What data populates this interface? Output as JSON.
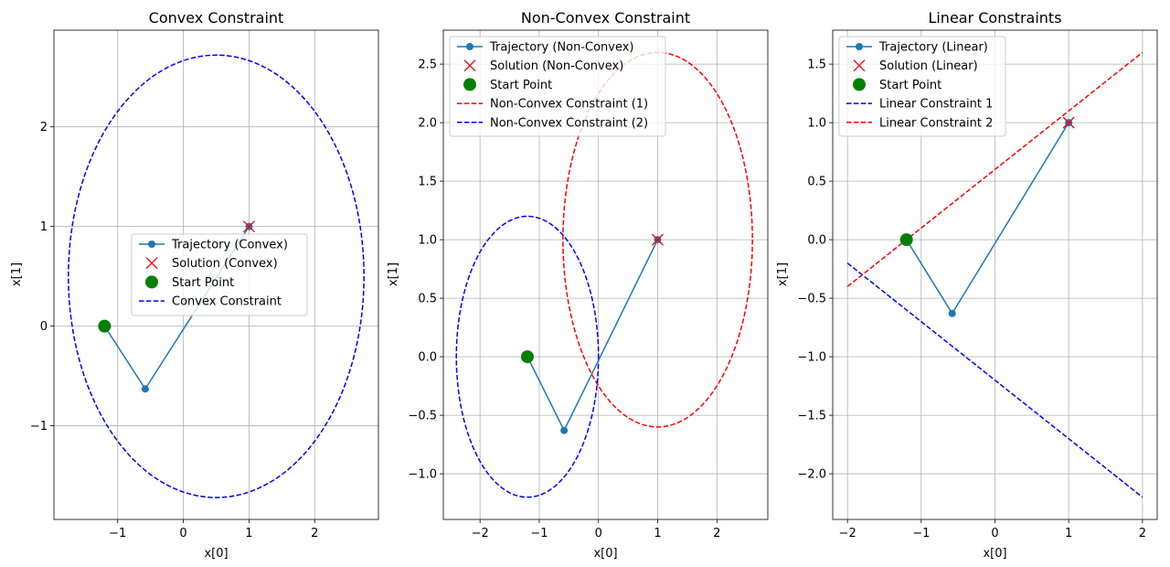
{
  "chart_data": [
    {
      "type": "line",
      "title": "Convex Constraint",
      "xlabel": "x[0]",
      "ylabel": "x[1]",
      "xlim": [
        -1.97,
        2.97
      ],
      "ylim": [
        -1.94,
        2.97
      ],
      "xticks": [
        -1,
        0,
        1,
        2
      ],
      "xtick_labels": [
        "−1",
        "0",
        "1",
        "2"
      ],
      "yticks": [
        -1,
        0,
        1,
        2
      ],
      "ytick_labels": [
        "−1",
        "0",
        "1",
        "2"
      ],
      "grid": true,
      "legend": {
        "placement": "center",
        "entries": [
          "Trajectory (Convex)",
          "Solution (Convex)",
          "Start Point",
          "Convex Constraint"
        ]
      },
      "series": [
        {
          "name": "Trajectory (Convex)",
          "kind": "line-markers",
          "color": "#1f77b4",
          "x": [
            -1.2,
            -0.58,
            1.0
          ],
          "y": [
            0.0,
            -0.63,
            1.0
          ]
        },
        {
          "name": "Solution (Convex)",
          "kind": "x-marker",
          "color": "#ff0000",
          "x": [
            1.0
          ],
          "y": [
            1.0
          ]
        },
        {
          "name": "Start Point",
          "kind": "big-dot",
          "color": "#008000",
          "x": [
            -1.2
          ],
          "y": [
            0.0
          ]
        },
        {
          "name": "Convex Constraint",
          "kind": "ellipse",
          "color": "#0000ff",
          "cx": 0.5,
          "cy": 0.5,
          "rx": 2.25,
          "ry": 2.22
        }
      ]
    },
    {
      "type": "line",
      "title": "Non-Convex Constraint",
      "xlabel": "x[0]",
      "ylabel": "x[1]",
      "xlim": [
        -2.62,
        2.86
      ],
      "ylim": [
        -1.39,
        2.79
      ],
      "xticks": [
        -2,
        -1,
        0,
        1,
        2
      ],
      "xtick_labels": [
        "−2",
        "−1",
        "0",
        "1",
        "2"
      ],
      "yticks": [
        -1.0,
        -0.5,
        0.0,
        0.5,
        1.0,
        1.5,
        2.0,
        2.5
      ],
      "ytick_labels": [
        "−1.0",
        "−0.5",
        "0.0",
        "0.5",
        "1.0",
        "1.5",
        "2.0",
        "2.5"
      ],
      "grid": true,
      "legend": {
        "placement": "upper-left",
        "entries": [
          "Trajectory (Non-Convex)",
          "Solution (Non-Convex)",
          "Start Point",
          "Non-Convex Constraint (1)",
          "Non-Convex Constraint (2)"
        ]
      },
      "series": [
        {
          "name": "Trajectory (Non-Convex)",
          "kind": "line-markers",
          "color": "#1f77b4",
          "x": [
            -1.2,
            -0.58,
            1.0
          ],
          "y": [
            0.0,
            -0.63,
            1.0
          ]
        },
        {
          "name": "Solution (Non-Convex)",
          "kind": "x-marker",
          "color": "#ff0000",
          "x": [
            1.0
          ],
          "y": [
            1.0
          ]
        },
        {
          "name": "Start Point",
          "kind": "big-dot",
          "color": "#008000",
          "x": [
            -1.2
          ],
          "y": [
            0.0
          ]
        },
        {
          "name": "Non-Convex Constraint (1)",
          "kind": "ellipse",
          "color": "#ff0000",
          "cx": 1.0,
          "cy": 1.0,
          "rx": 1.6,
          "ry": 1.6
        },
        {
          "name": "Non-Convex Constraint (2)",
          "kind": "ellipse",
          "color": "#0000ff",
          "cx": -1.2,
          "cy": 0.0,
          "rx": 1.2,
          "ry": 1.2
        }
      ]
    },
    {
      "type": "line",
      "title": "Linear Constraints",
      "xlabel": "x[0]",
      "ylabel": "x[1]",
      "xlim": [
        -2.2,
        2.2
      ],
      "ylim": [
        -2.39,
        1.79
      ],
      "xticks": [
        -2,
        -1,
        0,
        1,
        2
      ],
      "xtick_labels": [
        "−2",
        "−1",
        "0",
        "1",
        "2"
      ],
      "yticks": [
        -2.0,
        -1.5,
        -1.0,
        -0.5,
        0.0,
        0.5,
        1.0,
        1.5
      ],
      "ytick_labels": [
        "−2.0",
        "−1.5",
        "−1.0",
        "−0.5",
        "0.0",
        "0.5",
        "1.0",
        "1.5"
      ],
      "grid": true,
      "legend": {
        "placement": "upper-left",
        "entries": [
          "Trajectory (Linear)",
          "Solution (Linear)",
          "Start Point",
          "Linear Constraint 1",
          "Linear Constraint 2"
        ]
      },
      "series": [
        {
          "name": "Trajectory (Linear)",
          "kind": "line-markers",
          "color": "#1f77b4",
          "x": [
            -1.2,
            -0.58,
            1.0
          ],
          "y": [
            0.0,
            -0.63,
            1.0
          ]
        },
        {
          "name": "Solution (Linear)",
          "kind": "x-marker",
          "color": "#ff0000",
          "x": [
            1.0
          ],
          "y": [
            1.0
          ]
        },
        {
          "name": "Start Point",
          "kind": "big-dot",
          "color": "#008000",
          "x": [
            -1.2
          ],
          "y": [
            0.0
          ]
        },
        {
          "name": "Linear Constraint 1",
          "kind": "dashed-line",
          "color": "#0000ff",
          "x": [
            -2,
            2
          ],
          "y": [
            -0.2,
            -2.2
          ]
        },
        {
          "name": "Linear Constraint 2",
          "kind": "dashed-line",
          "color": "#ff0000",
          "x": [
            -2,
            2
          ],
          "y": [
            -0.4,
            1.6
          ]
        }
      ]
    }
  ]
}
